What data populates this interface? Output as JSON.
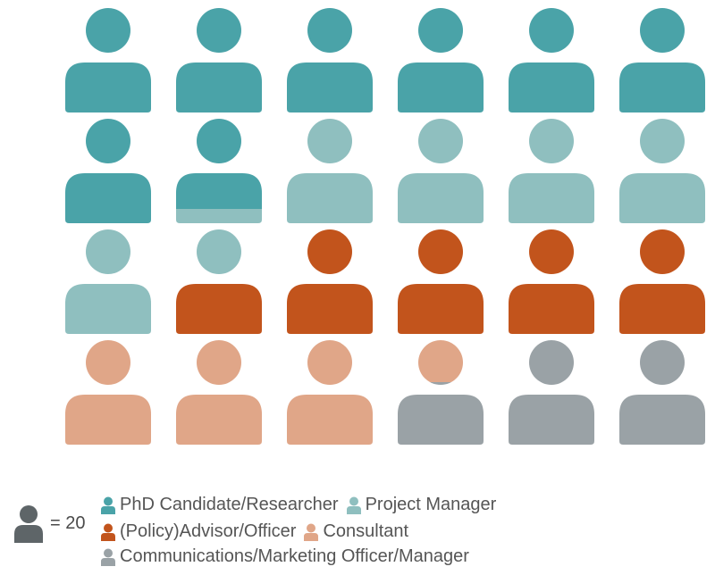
{
  "chart_data": {
    "type": "pictogram",
    "unit_label": "= 20",
    "unit_value": 20,
    "columns": 6,
    "categories": [
      "PhD Candidate/Researcher",
      "Project Manager",
      "(Policy)Advisor/Officer",
      "Consultant",
      "Communications/Marketing Officer/Manager"
    ],
    "series": [
      {
        "name": "PhD Candidate/Researcher",
        "icons": 7.85,
        "value": 157,
        "color": "#4aa3a8"
      },
      {
        "name": "Project Manager",
        "icons": 5.65,
        "value": 113,
        "color": "#8fbfbf"
      },
      {
        "name": "(Policy)Advisor/Officer",
        "icons": 4.5,
        "value": 90,
        "color": "#c2541c"
      },
      {
        "name": "Consultant",
        "icons": 3.4,
        "value": 68,
        "color": "#e0a688"
      },
      {
        "name": "Communications/Marketing Officer/Manager",
        "icons": 2.6,
        "value": 52,
        "color": "#9aa2a6"
      }
    ],
    "legend_placement": "bottom"
  },
  "legend": {
    "scale_color": "#5e6568",
    "rows": [
      [
        0,
        1
      ],
      [
        2,
        3
      ],
      [
        4
      ]
    ]
  }
}
